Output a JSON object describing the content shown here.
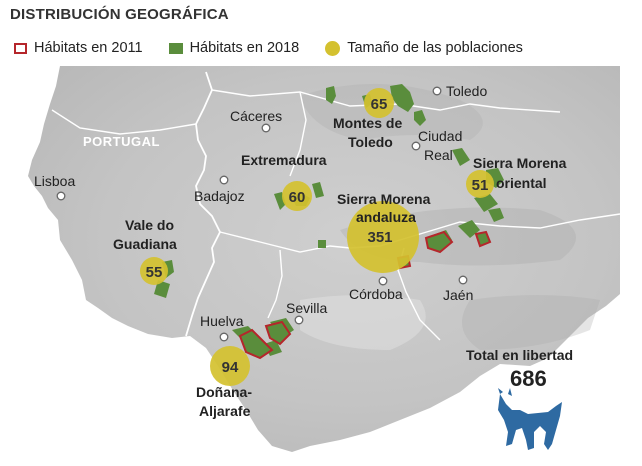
{
  "title": "DISTRIBUCIÓN GEOGRÁFICA",
  "legend": {
    "habitats_2011": "Hábitats en 2011",
    "habitats_2018": "Hábitats en 2018",
    "population_size": "Tamaño de las poblaciones"
  },
  "colors": {
    "habitat_2011": "#b5262b",
    "habitat_2018": "#5a8d3c",
    "population": "#d4c12f",
    "lynx": "#2e6aa2"
  },
  "map": {
    "country_label": "PORTUGAL",
    "cities": {
      "toledo": "Toledo",
      "caceres": "Cáceres",
      "ciudad_real_1": "Ciudad",
      "ciudad_real_2": "Real",
      "lisboa": "Lisboa",
      "badajoz": "Badajoz",
      "cordoba": "Córdoba",
      "jaen": "Jaén",
      "sevilla": "Sevilla",
      "huelva": "Huelva"
    },
    "regions": {
      "montes_1": "Montes de",
      "montes_2": "Toledo",
      "extremadura": "Extremadura",
      "sm_oriental_1": "Sierra Morena",
      "sm_oriental_2": "oriental",
      "sm_andaluza_1": "Sierra Morena",
      "sm_andaluza_2": "andaluza",
      "vale_1": "Vale do",
      "vale_2": "Guadiana",
      "donana_1": "Doñana-",
      "donana_2": "Aljarafe"
    },
    "populations": {
      "montes_de_toledo": "65",
      "extremadura": "60",
      "sierra_morena_oriental": "51",
      "sierra_morena_andaluza": "351",
      "vale_do_guadiana": "55",
      "donana_aljarafe": "94"
    },
    "total_label": "Total en libertad",
    "total_value": "686",
    "lynx_icon": "lynx-icon"
  }
}
